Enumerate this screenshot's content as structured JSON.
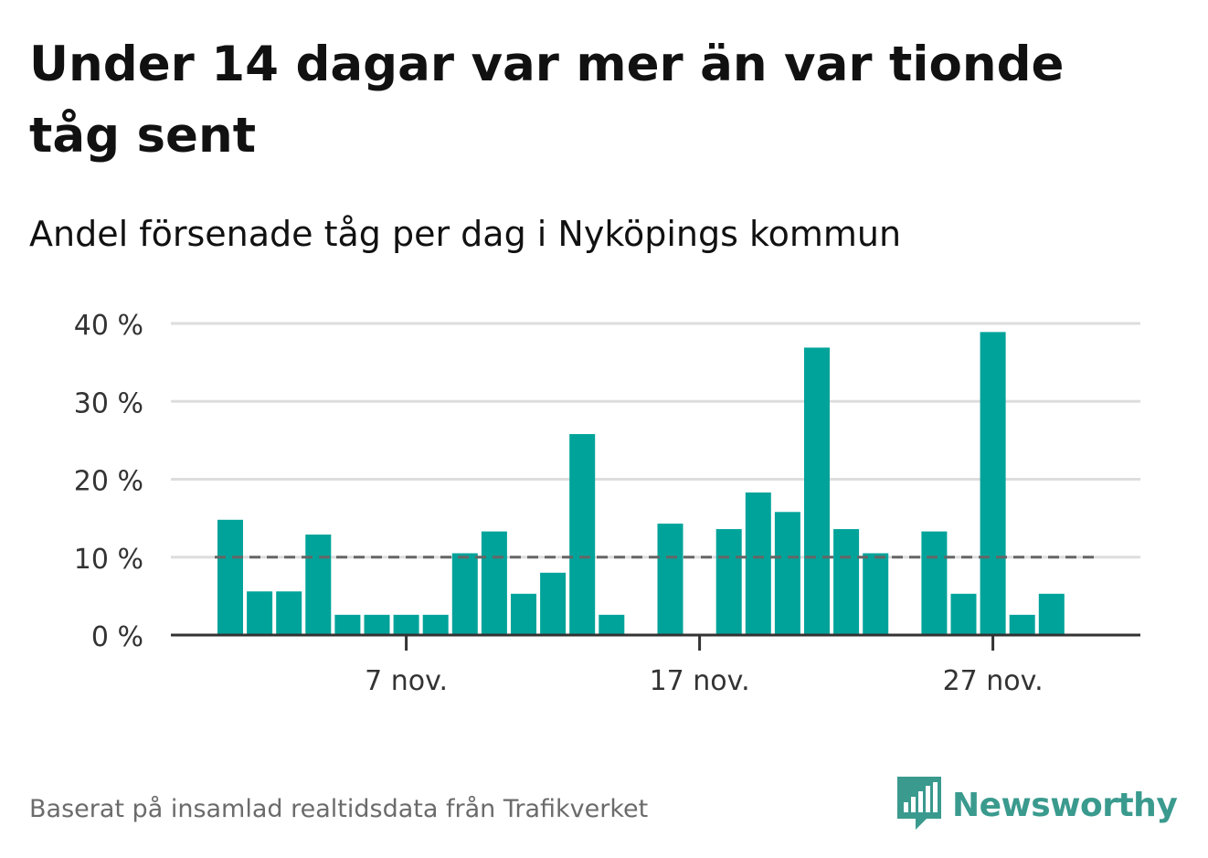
{
  "title": "Under 14 dagar var mer än var tionde tåg sent",
  "subtitle": "Andel försenade tåg per dag i Nyköpings kommun",
  "footer_note": "Baserat på insamlad realtidsdata från Trafikverket",
  "brand": {
    "name": "Newsworthy",
    "icon": "newsworthy-logo-icon"
  },
  "colors": {
    "bar": "#00a39a",
    "grid": "#dddddd",
    "axis": "#333333",
    "reference_line": "#666666",
    "brand": "#3a9a8e",
    "text": "#111111",
    "muted": "#6b6b6b"
  },
  "chart_data": {
    "type": "bar",
    "unit": "%",
    "ylim": [
      0,
      40
    ],
    "yticks": [
      0,
      10,
      20,
      30,
      40
    ],
    "ytick_labels": [
      "0 %",
      "10 %",
      "20 %",
      "30 %",
      "40 %"
    ],
    "xticks": [
      {
        "date": "2023-11-07",
        "label": "7 nov."
      },
      {
        "date": "2023-11-17",
        "label": "17 nov."
      },
      {
        "date": "2023-11-27",
        "label": "27 nov."
      }
    ],
    "grid": true,
    "reference_line": {
      "value": 10,
      "style": "dashed"
    },
    "x": [
      "2023-11-01",
      "2023-11-02",
      "2023-11-03",
      "2023-11-04",
      "2023-11-05",
      "2023-11-06",
      "2023-11-07",
      "2023-11-08",
      "2023-11-09",
      "2023-11-10",
      "2023-11-11",
      "2023-11-12",
      "2023-11-13",
      "2023-11-14",
      "2023-11-15",
      "2023-11-16",
      "2023-11-17",
      "2023-11-18",
      "2023-11-19",
      "2023-11-20",
      "2023-11-21",
      "2023-11-22",
      "2023-11-23",
      "2023-11-24",
      "2023-11-25",
      "2023-11-26",
      "2023-11-27",
      "2023-11-28",
      "2023-11-29",
      "2023-11-30"
    ],
    "values": [
      14.8,
      5.6,
      5.6,
      12.9,
      2.6,
      2.6,
      2.6,
      2.6,
      10.5,
      13.3,
      5.3,
      8.0,
      25.8,
      2.6,
      null,
      14.3,
      null,
      13.6,
      18.3,
      15.8,
      36.9,
      13.6,
      10.5,
      null,
      13.3,
      5.3,
      38.9,
      2.6,
      5.3,
      null
    ]
  }
}
